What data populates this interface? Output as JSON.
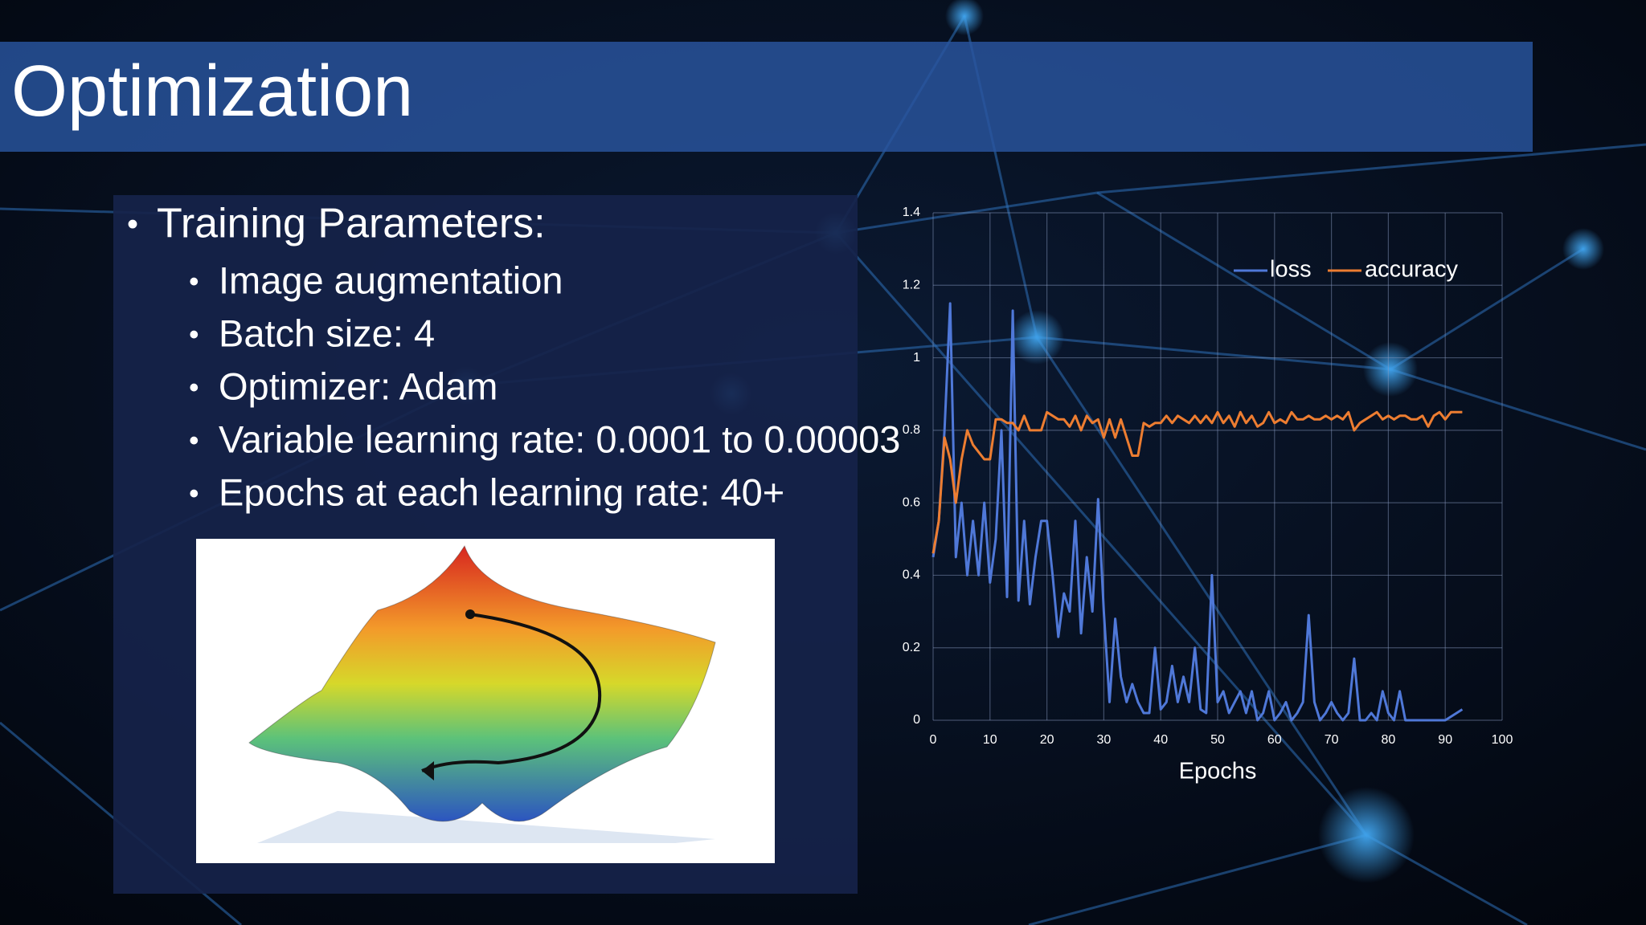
{
  "title": "Optimization",
  "bullets": {
    "heading": "Training Parameters:",
    "items": [
      "Image augmentation",
      "Batch size: 4",
      "Optimizer: Adam",
      "Variable learning rate: 0.0001 to 0.00003",
      "Epochs at each learning rate: 40+"
    ]
  },
  "chart_data": {
    "type": "line",
    "xlabel": "Epochs",
    "x": [
      0,
      1,
      2,
      3,
      4,
      5,
      6,
      7,
      8,
      9,
      10,
      11,
      12,
      13,
      14,
      15,
      16,
      17,
      18,
      19,
      20,
      21,
      22,
      23,
      24,
      25,
      26,
      27,
      28,
      29,
      30,
      31,
      32,
      33,
      34,
      35,
      36,
      37,
      38,
      39,
      40,
      41,
      42,
      43,
      44,
      45,
      46,
      47,
      48,
      49,
      50,
      51,
      52,
      53,
      54,
      55,
      56,
      57,
      58,
      59,
      60,
      61,
      62,
      63,
      64,
      65,
      66,
      67,
      68,
      69,
      70,
      71,
      72,
      73,
      74,
      75,
      76,
      77,
      78,
      79,
      80,
      81,
      82,
      83,
      84,
      85,
      86,
      87,
      88,
      89,
      90,
      91,
      92,
      93
    ],
    "series": [
      {
        "name": "loss",
        "color": "#4f78d8",
        "values": [
          0.45,
          0.55,
          0.8,
          1.15,
          0.45,
          0.6,
          0.4,
          0.55,
          0.4,
          0.6,
          0.38,
          0.5,
          0.8,
          0.34,
          1.13,
          0.33,
          0.55,
          0.32,
          0.45,
          0.55,
          0.55,
          0.4,
          0.23,
          0.35,
          0.3,
          0.55,
          0.24,
          0.45,
          0.3,
          0.61,
          0.3,
          0.05,
          0.28,
          0.12,
          0.05,
          0.1,
          0.05,
          0.02,
          0.02,
          0.2,
          0.03,
          0.05,
          0.15,
          0.05,
          0.12,
          0.05,
          0.2,
          0.03,
          0.02,
          0.4,
          0.05,
          0.08,
          0.02,
          0.05,
          0.08,
          0.02,
          0.08,
          0,
          0.02,
          0.08,
          0,
          0.02,
          0.05,
          0,
          0.02,
          0.05,
          0.29,
          0.05,
          0,
          0.02,
          0.05,
          0.02,
          0,
          0.02,
          0.17,
          0,
          0,
          0.02,
          0,
          0.08,
          0.02,
          0,
          0.08,
          0,
          0,
          0,
          0,
          0,
          0,
          0,
          0,
          0.01,
          0.02,
          0.03
        ]
      },
      {
        "name": "accuracy",
        "color": "#ed7d31",
        "values": [
          0.46,
          0.55,
          0.78,
          0.72,
          0.6,
          0.72,
          0.8,
          0.76,
          0.74,
          0.72,
          0.72,
          0.83,
          0.83,
          0.82,
          0.82,
          0.8,
          0.84,
          0.8,
          0.8,
          0.8,
          0.85,
          0.84,
          0.83,
          0.83,
          0.81,
          0.84,
          0.8,
          0.84,
          0.82,
          0.83,
          0.78,
          0.83,
          0.78,
          0.83,
          0.78,
          0.73,
          0.73,
          0.82,
          0.81,
          0.82,
          0.82,
          0.84,
          0.82,
          0.84,
          0.83,
          0.82,
          0.84,
          0.82,
          0.84,
          0.82,
          0.85,
          0.82,
          0.84,
          0.81,
          0.85,
          0.82,
          0.84,
          0.81,
          0.82,
          0.85,
          0.82,
          0.83,
          0.82,
          0.85,
          0.83,
          0.83,
          0.84,
          0.83,
          0.83,
          0.84,
          0.83,
          0.84,
          0.83,
          0.85,
          0.8,
          0.82,
          0.83,
          0.84,
          0.85,
          0.83,
          0.84,
          0.83,
          0.84,
          0.84,
          0.83,
          0.83,
          0.84,
          0.81,
          0.84,
          0.85,
          0.83,
          0.85,
          0.85,
          0.85
        ]
      }
    ],
    "xlim": [
      0,
      100
    ],
    "xticks": [
      0,
      10,
      20,
      30,
      40,
      50,
      60,
      70,
      80,
      90,
      100
    ],
    "ylim": [
      0,
      1.4
    ],
    "yticks": [
      0,
      0.2,
      0.4,
      0.6,
      0.8,
      1,
      1.2,
      1.4
    ],
    "grid": true,
    "legend": "top-right"
  }
}
